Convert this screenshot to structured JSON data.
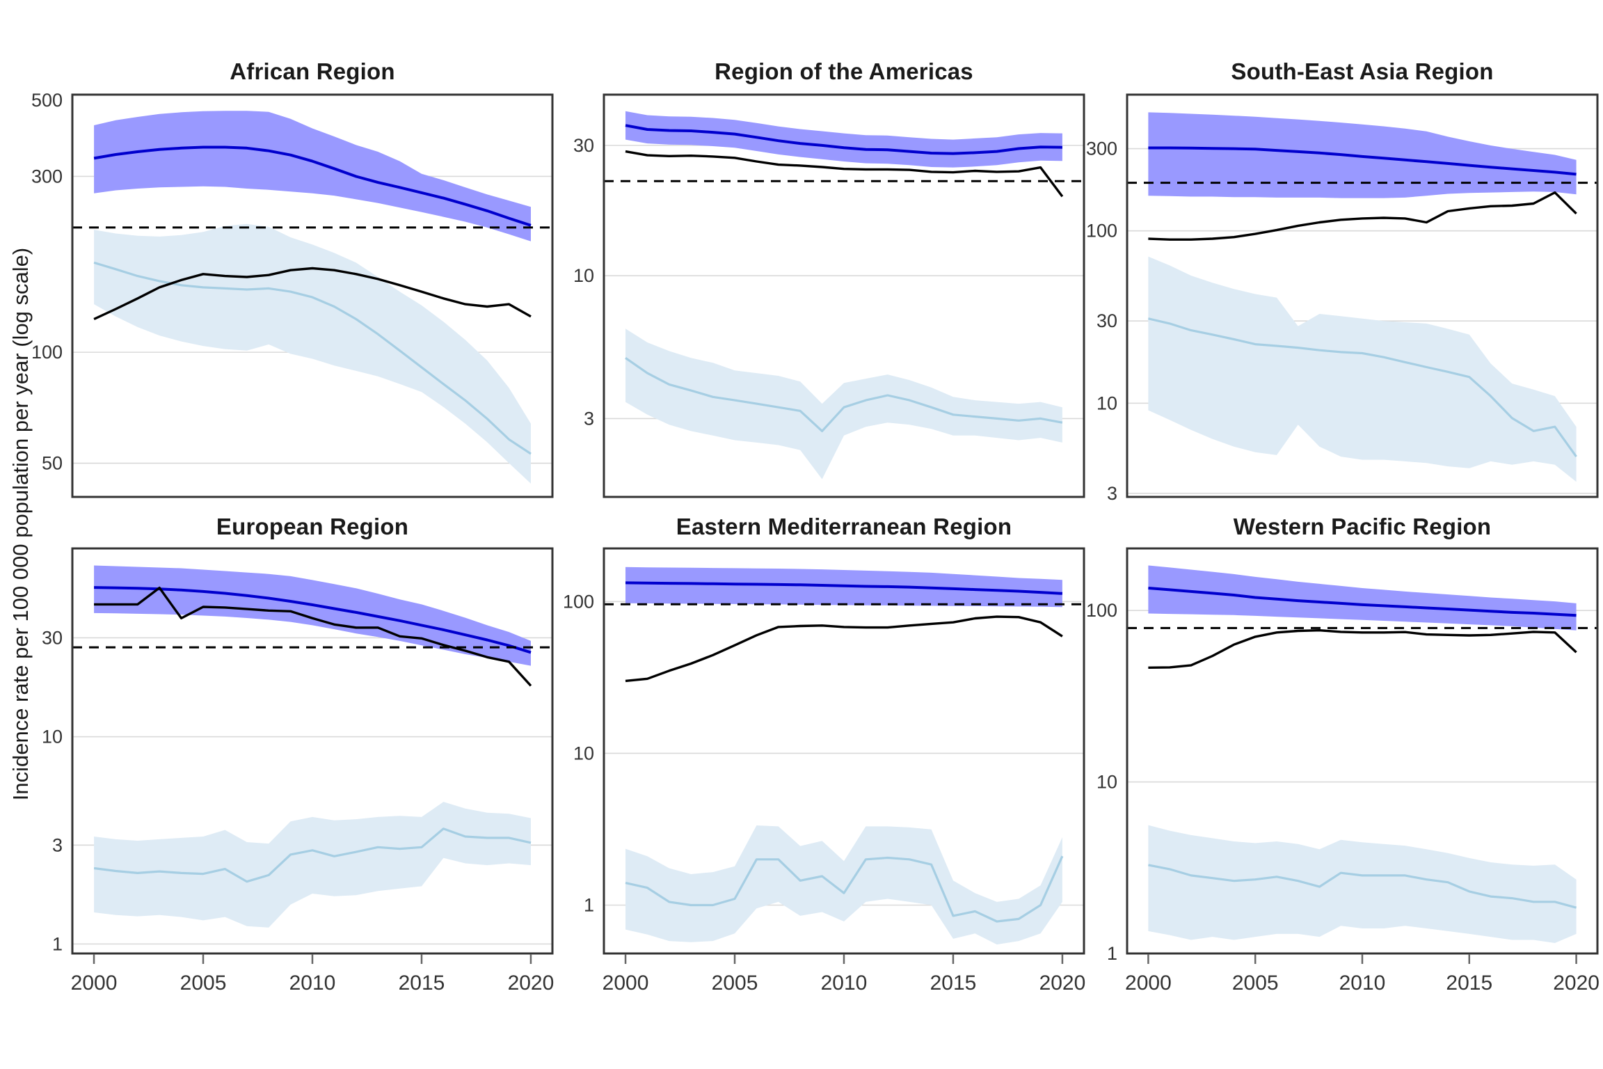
{
  "figure": {
    "y_axis_label": "Incidence rate per 100 000 population per year (log scale)",
    "years": [
      2000,
      2001,
      2002,
      2003,
      2004,
      2005,
      2006,
      2007,
      2008,
      2009,
      2010,
      2011,
      2012,
      2013,
      2014,
      2015,
      2016,
      2017,
      2018,
      2019,
      2020
    ],
    "x_tick_labels": [
      "2000",
      "2005",
      "2010",
      "2015",
      "2020"
    ],
    "x_tick_years": [
      2000,
      2005,
      2010,
      2015,
      2020
    ],
    "colors": {
      "estimate_line": "#0000CD",
      "estimate_ribbon": "#9999FF",
      "secondary_line": "#A6CEE3",
      "secondary_ribbon": "#DEEBF5",
      "notifications_line": "#000000",
      "dashed_line": "#000000",
      "gridline": "#D9D9D9",
      "panel_border": "#333333",
      "tick_text": "#333333",
      "tick_mark": "#666666"
    }
  },
  "chart_data": [
    {
      "type": "line",
      "title": "African Region",
      "y_ticks": [
        "500",
        "300",
        "100",
        "50"
      ],
      "y_domain": [
        40.5,
        500
      ],
      "dashed_value": 218,
      "series": {
        "estimate": [
          336,
          344,
          350,
          355,
          358,
          360,
          360,
          358,
          352,
          343,
          330,
          315,
          300,
          289,
          280,
          271,
          262,
          252,
          242,
          231,
          221
        ],
        "estimate_hi": [
          413,
          426,
          435,
          443,
          448,
          451,
          452,
          452,
          449,
          430,
          405,
          385,
          365,
          350,
          330,
          305,
          293,
          280,
          268,
          258,
          248
        ],
        "estimate_lo": [
          270,
          275,
          278,
          280,
          281,
          282,
          281,
          278,
          276,
          273,
          270,
          266,
          260,
          254,
          247,
          240,
          233,
          226,
          218,
          209,
          200
        ],
        "notifications": [
          123,
          131,
          140,
          150,
          157,
          163,
          161,
          160,
          162,
          167,
          169,
          167,
          163,
          158,
          152,
          146,
          140,
          135,
          133,
          135,
          125
        ],
        "secondary": [
          175,
          168,
          161,
          156,
          152,
          150,
          149,
          148,
          149,
          146,
          141,
          133,
          123,
          112,
          101,
          91,
          82,
          74,
          66,
          58,
          53
        ],
        "secondary_hi": [
          215,
          210,
          207,
          206,
          208,
          212,
          220,
          223,
          219,
          205,
          196,
          186,
          175,
          160,
          146,
          134,
          121,
          108,
          95,
          80,
          64
        ],
        "secondary_lo": [
          135,
          125,
          117,
          111,
          107,
          104,
          102,
          101,
          105,
          99,
          96,
          92,
          89,
          86,
          82,
          78,
          71,
          64,
          57,
          50,
          44
        ]
      }
    },
    {
      "type": "line",
      "title": "Region of the Americas",
      "y_ticks": [
        "30",
        "10",
        "3"
      ],
      "y_domain": [
        1.55,
        46
      ],
      "dashed_value": 22.2,
      "series": {
        "estimate": [
          35.5,
          34.3,
          34,
          33.9,
          33.5,
          33,
          32.1,
          31.2,
          30.5,
          30,
          29.4,
          29,
          28.9,
          28.5,
          28.1,
          28,
          28.2,
          28.5,
          29.2,
          29.6,
          29.5
        ],
        "estimate_hi": [
          40,
          38.7,
          38.3,
          38.2,
          37.8,
          37.2,
          36.2,
          35.2,
          34.4,
          33.8,
          33.2,
          32.7,
          32.6,
          32.1,
          31.7,
          31.5,
          31.8,
          32.1,
          32.9,
          33.3,
          33.2
        ],
        "estimate_lo": [
          31.5,
          30.5,
          30.2,
          30.1,
          29.8,
          29.4,
          28.6,
          27.8,
          27.2,
          26.7,
          26.2,
          25.8,
          25.7,
          25.4,
          25,
          24.9,
          25.1,
          25.4,
          26,
          26.4,
          26.3
        ],
        "notifications": [
          28.5,
          27.6,
          27.4,
          27.5,
          27.3,
          27,
          26.2,
          25.5,
          25.3,
          25,
          24.6,
          24.5,
          24.5,
          24.4,
          24,
          23.9,
          24.2,
          24,
          24.1,
          24.9,
          19.5
        ],
        "secondary": [
          5.0,
          4.4,
          4.0,
          3.8,
          3.6,
          3.5,
          3.4,
          3.3,
          3.2,
          2.7,
          3.3,
          3.5,
          3.65,
          3.5,
          3.3,
          3.1,
          3.05,
          3.0,
          2.95,
          3.0,
          2.9
        ],
        "secondary_hi": [
          6.4,
          5.7,
          5.3,
          5.0,
          4.8,
          4.5,
          4.4,
          4.3,
          4.1,
          3.4,
          4.05,
          4.2,
          4.35,
          4.15,
          3.9,
          3.6,
          3.5,
          3.45,
          3.4,
          3.45,
          3.3
        ],
        "secondary_lo": [
          3.45,
          3.1,
          2.85,
          2.7,
          2.6,
          2.5,
          2.45,
          2.4,
          2.3,
          1.8,
          2.6,
          2.8,
          2.9,
          2.85,
          2.75,
          2.6,
          2.6,
          2.55,
          2.5,
          2.55,
          2.45
        ]
      }
    },
    {
      "type": "line",
      "title": "South-East Asia Region",
      "y_ticks": [
        "300",
        "100",
        "30",
        "10",
        "3"
      ],
      "y_domain": [
        2.86,
        617
      ],
      "dashed_value": 190,
      "series": {
        "estimate": [
          303,
          303,
          302,
          301,
          300,
          298,
          293,
          288,
          283,
          277,
          270,
          264,
          258,
          252,
          246,
          240,
          234,
          229,
          224,
          219,
          213
        ],
        "estimate_hi": [
          487,
          483,
          478,
          472,
          466,
          459,
          451,
          443,
          434,
          425,
          415,
          404,
          392,
          378,
          352,
          331,
          313,
          299,
          287,
          276,
          258
        ],
        "estimate_lo": [
          160,
          159,
          158,
          158,
          157,
          157,
          156,
          156,
          156,
          155,
          155,
          155,
          156,
          160,
          164,
          166,
          167,
          168,
          169,
          168,
          163
        ],
        "notifications": [
          90,
          89,
          89,
          90,
          92,
          96,
          101,
          107,
          112,
          116,
          118,
          119,
          118,
          112,
          130,
          135,
          139,
          140,
          144,
          167,
          126
        ],
        "secondary": [
          31,
          29,
          26.5,
          25,
          23.5,
          22,
          21.5,
          21,
          20.3,
          19.8,
          19.5,
          18.5,
          17.3,
          16.2,
          15.2,
          14.2,
          11,
          8.2,
          6.9,
          7.3,
          4.9
        ],
        "secondary_hi": [
          71,
          63,
          55,
          50,
          46,
          43,
          41,
          28,
          33,
          32,
          31,
          30,
          29.5,
          29,
          27,
          25,
          17,
          13,
          12,
          11,
          7.3
        ],
        "secondary_lo": [
          9.1,
          8,
          7,
          6.2,
          5.6,
          5.2,
          5.0,
          7.5,
          5.6,
          4.9,
          4.7,
          4.7,
          4.6,
          4.5,
          4.3,
          4.2,
          4.6,
          4.4,
          4.6,
          4.4,
          3.5
        ]
      }
    },
    {
      "type": "line",
      "title": "European Region",
      "y_ticks": [
        "30",
        "10",
        "3",
        "1"
      ],
      "y_domain": [
        0.9,
        81
      ],
      "dashed_value": 27,
      "series": {
        "estimate": [
          52.5,
          52.3,
          52,
          51.6,
          51,
          50.2,
          49.2,
          48,
          46.6,
          45,
          43.3,
          41.5,
          39.8,
          38,
          36.3,
          34.5,
          32.8,
          31,
          29.3,
          27.5,
          25.5
        ],
        "estimate_hi": [
          67,
          66.5,
          66,
          65.5,
          65,
          64,
          63,
          62,
          61,
          59.5,
          57,
          54.5,
          52,
          49,
          46,
          43.5,
          40.5,
          37.5,
          34.5,
          32,
          29
        ],
        "estimate_lo": [
          39.5,
          39.4,
          39.2,
          39,
          38.8,
          38.4,
          38,
          37.4,
          36.7,
          35.8,
          34.5,
          33,
          31.5,
          30.3,
          29,
          27.6,
          26.3,
          25,
          24,
          23,
          22
        ],
        "notifications": [
          43.5,
          43.5,
          43.5,
          52.3,
          37.3,
          42.3,
          42,
          41.3,
          40.6,
          40.3,
          37.3,
          34.8,
          33.6,
          33.6,
          30.5,
          29.8,
          27.7,
          26,
          24.2,
          23,
          17.6
        ],
        "secondary": [
          2.32,
          2.25,
          2.2,
          2.24,
          2.2,
          2.18,
          2.3,
          2.0,
          2.15,
          2.7,
          2.83,
          2.65,
          2.78,
          2.93,
          2.88,
          2.93,
          3.6,
          3.3,
          3.25,
          3.25,
          3.08
        ],
        "secondary_hi": [
          3.3,
          3.2,
          3.15,
          3.2,
          3.25,
          3.3,
          3.55,
          3.1,
          3.05,
          3.9,
          4.1,
          3.95,
          4.0,
          4.1,
          4.15,
          4.1,
          4.85,
          4.5,
          4.3,
          4.25,
          4.05
        ],
        "secondary_lo": [
          1.42,
          1.38,
          1.36,
          1.38,
          1.35,
          1.3,
          1.35,
          1.22,
          1.2,
          1.55,
          1.75,
          1.7,
          1.72,
          1.8,
          1.85,
          1.9,
          2.6,
          2.45,
          2.4,
          2.45,
          2.4
        ]
      }
    },
    {
      "type": "line",
      "title": "Eastern Mediterranean Region",
      "y_ticks": [
        "100",
        "10",
        "1"
      ],
      "y_domain": [
        0.48,
        224
      ],
      "dashed_value": 96,
      "series": {
        "estimate": [
          133,
          132.5,
          132,
          131.5,
          131,
          130.5,
          130,
          129.5,
          129,
          128,
          127,
          126,
          125.5,
          124.5,
          123,
          121.5,
          120,
          118.5,
          117,
          115,
          113
        ],
        "estimate_hi": [
          169,
          168,
          167.5,
          167,
          166.5,
          166,
          165.5,
          165,
          164,
          163,
          161.5,
          160,
          158.5,
          157,
          155,
          152,
          149,
          146,
          143,
          141,
          139
        ],
        "estimate_lo": [
          97.5,
          97.3,
          97,
          96.8,
          96.5,
          96.3,
          96,
          95.8,
          95.5,
          95,
          94.8,
          94.5,
          94.3,
          94,
          93.8,
          93.5,
          93.3,
          93,
          92.8,
          92.5,
          92
        ],
        "notifications": [
          30,
          31,
          35,
          39,
          44.4,
          51.5,
          60,
          68,
          69,
          69.5,
          68,
          67.5,
          67.5,
          69.5,
          71.3,
          73,
          77.5,
          79.5,
          79,
          73,
          59
        ],
        "secondary": [
          1.4,
          1.3,
          1.05,
          1.0,
          1.0,
          1.1,
          2.0,
          2.0,
          1.45,
          1.55,
          1.2,
          2.0,
          2.05,
          2.0,
          1.85,
          0.85,
          0.91,
          0.78,
          0.81,
          1.0,
          2.1
        ],
        "secondary_hi": [
          2.35,
          2.1,
          1.75,
          1.6,
          1.65,
          1.8,
          3.35,
          3.3,
          2.45,
          2.65,
          1.95,
          3.3,
          3.3,
          3.25,
          3.15,
          1.45,
          1.2,
          1.05,
          1.1,
          1.35,
          2.8
        ],
        "secondary_lo": [
          0.69,
          0.64,
          0.58,
          0.57,
          0.58,
          0.65,
          0.95,
          1.05,
          0.85,
          0.9,
          0.78,
          1.05,
          1.1,
          1.05,
          1.0,
          0.6,
          0.65,
          0.55,
          0.58,
          0.65,
          1.05
        ]
      }
    },
    {
      "type": "line",
      "title": "Western Pacific Region",
      "y_ticks": [
        "100",
        "10",
        "1"
      ],
      "y_domain": [
        1.0,
        230
      ],
      "dashed_value": 79,
      "series": {
        "estimate": [
          135,
          132,
          129,
          126,
          123,
          119,
          116.5,
          114,
          112,
          110,
          108,
          106.5,
          105,
          103.5,
          102,
          100.5,
          99,
          97.5,
          96.5,
          95,
          93.5
        ],
        "estimate_hi": [
          183,
          178,
          173,
          168,
          163,
          157,
          152,
          147,
          143,
          139,
          135,
          132,
          129,
          126.5,
          124,
          121.5,
          119,
          117,
          115,
          113,
          110
        ],
        "estimate_lo": [
          96,
          95.5,
          95,
          94.5,
          94,
          93,
          92,
          91,
          90,
          89,
          88,
          87,
          86,
          85,
          84,
          83,
          82,
          81,
          79.5,
          78,
          76.5
        ],
        "notifications": [
          46.4,
          46.6,
          47.9,
          54.3,
          63.2,
          70.3,
          74.4,
          76,
          76.6,
          75,
          74.4,
          74.4,
          74.8,
          72.5,
          72,
          71.5,
          72,
          73.4,
          75,
          74.4,
          57
        ],
        "secondary": [
          3.28,
          3.1,
          2.85,
          2.75,
          2.65,
          2.7,
          2.8,
          2.65,
          2.45,
          2.95,
          2.85,
          2.85,
          2.85,
          2.7,
          2.6,
          2.3,
          2.15,
          2.1,
          2.0,
          2.0,
          1.85
        ],
        "secondary_hi": [
          5.6,
          5.2,
          4.9,
          4.7,
          4.5,
          4.4,
          4.5,
          4.35,
          4.05,
          4.6,
          4.45,
          4.35,
          4.25,
          4.05,
          3.85,
          3.6,
          3.4,
          3.3,
          3.25,
          3.3,
          2.7
        ],
        "secondary_lo": [
          1.35,
          1.28,
          1.2,
          1.25,
          1.2,
          1.25,
          1.3,
          1.3,
          1.25,
          1.45,
          1.4,
          1.4,
          1.45,
          1.4,
          1.35,
          1.3,
          1.25,
          1.2,
          1.2,
          1.15,
          1.3
        ]
      }
    }
  ]
}
